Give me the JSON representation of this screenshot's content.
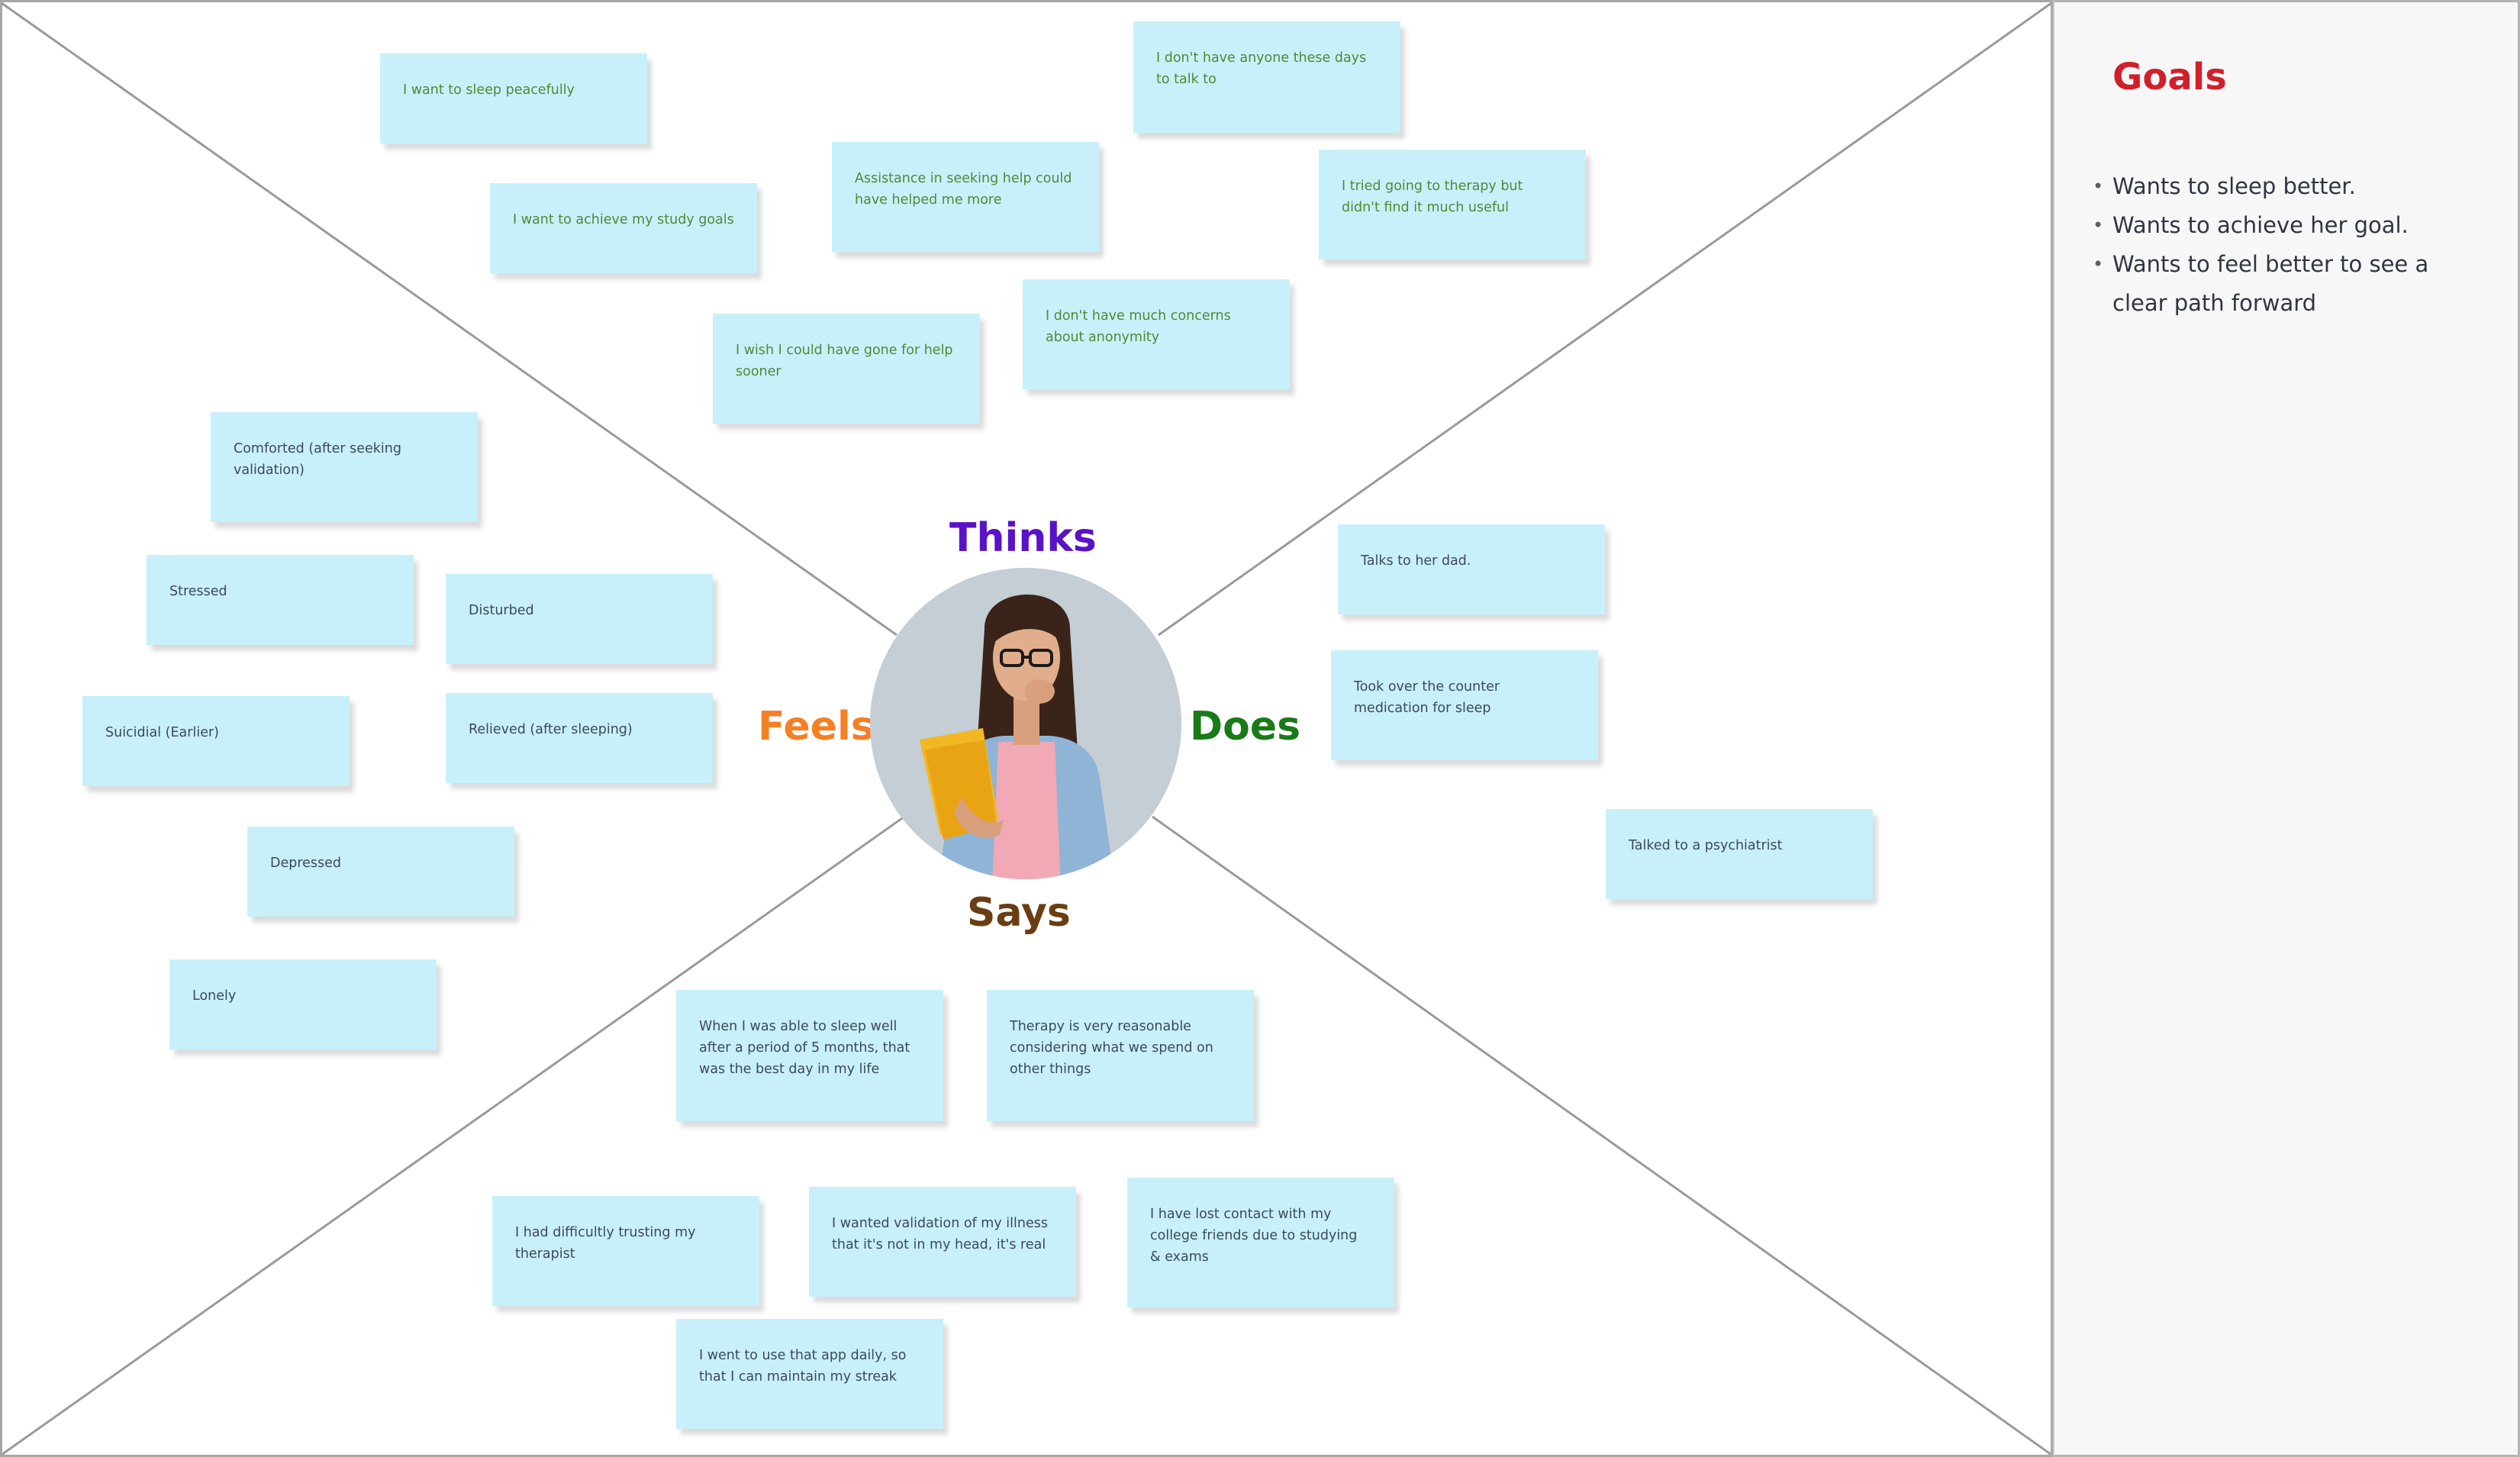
{
  "map": {
    "labels": {
      "thinks": "Thinks",
      "feels": "Feels",
      "does": "Does",
      "says": "Says"
    },
    "colors": {
      "thinks": "#5a12c8",
      "feels": "#f47f24",
      "does": "#1a7a18",
      "says": "#6b3d12",
      "sticky": "#c8f0fb",
      "goals_title": "#d11f2b"
    },
    "avatar_icon": "person-photo-icon"
  },
  "stickies": {
    "thinks": [
      "I want to sleep peacefully",
      "I want to achieve my study goals",
      "Assistance in seeking help could have helped me more",
      "I don't have anyone these days to talk to",
      "I tried going to therapy but didn't find it much useful",
      "I wish I could have gone for help sooner",
      "I don't have much concerns about anonymity"
    ],
    "feels": [
      "Comforted (after seeking validation)",
      "Stressed",
      "Disturbed",
      "Suicidial (Earlier)",
      "Relieved (after sleeping)",
      "Depressed",
      "Lonely"
    ],
    "does": [
      "Talks to her dad.",
      "Took over the counter medication for sleep",
      "Talked to a psychiatrist"
    ],
    "says": [
      "When I was able to sleep well after a period of 5 months, that was the best day in my life",
      "Therapy is very reasonable considering what we spend on other things",
      "I had difficultly trusting my therapist",
      "I wanted validation of my illness that it's not in my head, it's real",
      "I have lost contact with my college friends due to studying & exams",
      "I went to use that app daily, so that I can maintain my streak"
    ]
  },
  "goals": {
    "title": "Goals",
    "items": [
      "Wants to sleep better.",
      "Wants to achieve her goal.",
      "Wants to feel better to see a clear path forward"
    ]
  }
}
